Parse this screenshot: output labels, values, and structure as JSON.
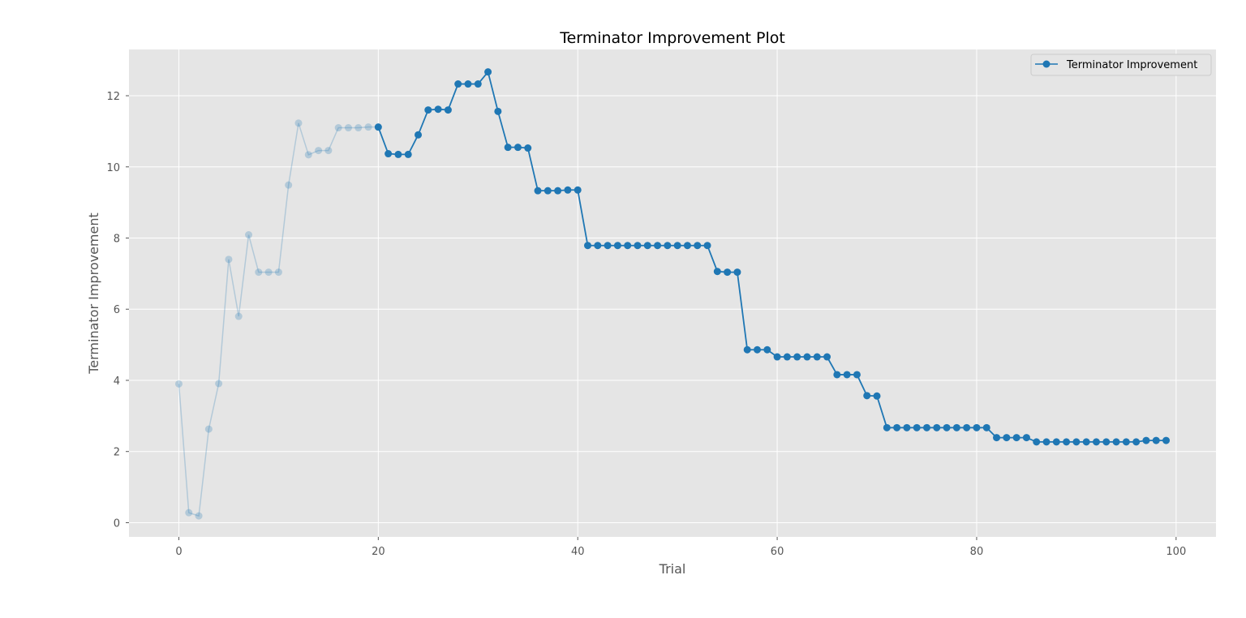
{
  "chart_data": {
    "type": "line",
    "title": "Terminator Improvement Plot",
    "xlabel": "Trial",
    "ylabel": "Terminator Improvement",
    "xlim": [
      -5,
      104
    ],
    "ylim": [
      -0.4,
      13.3
    ],
    "xticks": [
      0,
      20,
      40,
      60,
      80,
      100
    ],
    "yticks": [
      0,
      2,
      4,
      6,
      8,
      10,
      12
    ],
    "grid": true,
    "legend_position": "top-right",
    "min_n_trials": 20,
    "series": [
      {
        "name": "Terminator Improvement",
        "color": "#1f77b4",
        "marker": "circle",
        "x": [
          0,
          1,
          2,
          3,
          4,
          5,
          6,
          7,
          8,
          9,
          10,
          11,
          12,
          13,
          14,
          15,
          16,
          17,
          18,
          19,
          20,
          21,
          22,
          23,
          24,
          25,
          26,
          27,
          28,
          29,
          30,
          31,
          32,
          33,
          34,
          35,
          36,
          37,
          38,
          39,
          40,
          41,
          42,
          43,
          44,
          45,
          46,
          47,
          48,
          49,
          50,
          51,
          52,
          53,
          54,
          55,
          56,
          57,
          58,
          59,
          60,
          61,
          62,
          63,
          64,
          65,
          66,
          67,
          68,
          69,
          70,
          71,
          72,
          73,
          74,
          75,
          76,
          77,
          78,
          79,
          80,
          81,
          82,
          83,
          84,
          85,
          86,
          87,
          88,
          89,
          90,
          91,
          92,
          93,
          94,
          95,
          96,
          97,
          98,
          99
        ],
        "y": [
          3.9,
          0.28,
          0.19,
          2.63,
          3.91,
          7.4,
          5.8,
          8.09,
          7.04,
          7.04,
          7.04,
          9.49,
          11.23,
          10.34,
          10.46,
          10.46,
          11.1,
          11.1,
          11.1,
          11.12,
          11.12,
          10.37,
          10.35,
          10.35,
          10.9,
          11.6,
          11.62,
          11.6,
          12.33,
          12.33,
          12.33,
          12.67,
          11.56,
          10.55,
          10.55,
          10.53,
          9.33,
          9.33,
          9.33,
          9.35,
          9.35,
          7.79,
          7.79,
          7.79,
          7.79,
          7.79,
          7.79,
          7.79,
          7.79,
          7.79,
          7.79,
          7.79,
          7.79,
          7.79,
          7.06,
          7.04,
          7.04,
          4.86,
          4.86,
          4.86,
          4.66,
          4.66,
          4.66,
          4.66,
          4.66,
          4.66,
          4.16,
          4.16,
          4.16,
          3.57,
          3.56,
          2.67,
          2.67,
          2.67,
          2.67,
          2.67,
          2.67,
          2.67,
          2.67,
          2.67,
          2.67,
          2.67,
          2.39,
          2.39,
          2.39,
          2.39,
          2.27,
          2.27,
          2.27,
          2.27,
          2.27,
          2.27,
          2.27,
          2.27,
          2.27,
          2.27,
          2.27,
          2.31,
          2.31,
          2.31
        ]
      }
    ]
  }
}
